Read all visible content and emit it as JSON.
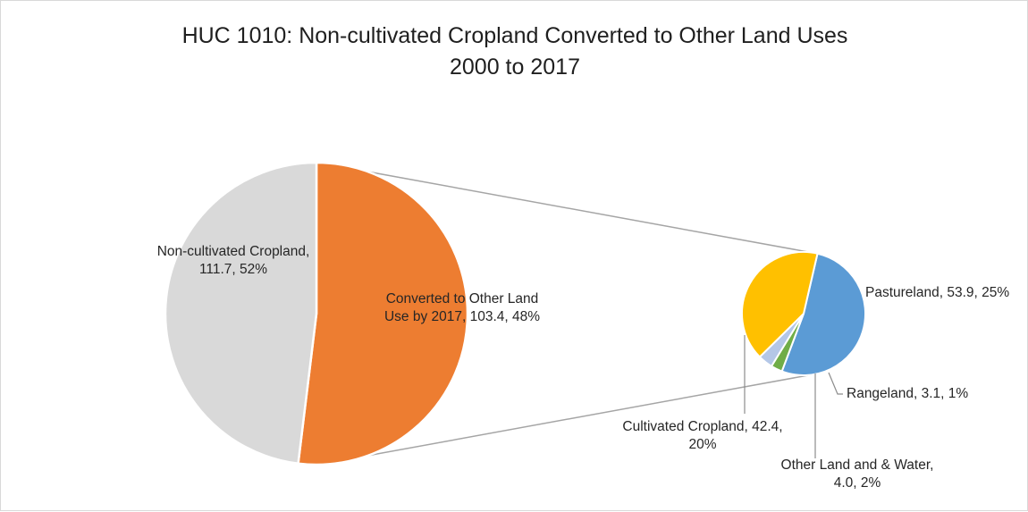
{
  "chart_data": {
    "type": "pie",
    "subtype": "pie-of-pie",
    "title_lines": [
      "HUC 1010: Non-cultivated Cropland Converted to Other Land Uses",
      "2000 to 2017"
    ],
    "main_pie": {
      "slices": [
        {
          "name": "Non-cultivated Cropland",
          "value": 111.7,
          "percent": 52,
          "color": "#ED7D31",
          "label_lines": [
            "Non-cultivated Cropland,",
            "111.7, 52%"
          ]
        },
        {
          "name": "Converted to Other Land Use by 2017",
          "value": 103.4,
          "percent": 48,
          "color": "#D9D9D9",
          "label_lines": [
            "Converted to Other Land",
            "Use by 2017, 103.4, 48%"
          ]
        }
      ]
    },
    "secondary_pie": {
      "slices": [
        {
          "name": "Pastureland",
          "value": 53.9,
          "percent": 25,
          "color": "#5B9BD5",
          "label_lines": [
            "Pastureland, 53.9, 25%"
          ]
        },
        {
          "name": "Rangeland",
          "value": 3.1,
          "percent": 1,
          "color": "#70AD47",
          "label_lines": [
            "Rangeland, 3.1, 1%"
          ]
        },
        {
          "name": "Other Land and & Water",
          "value": 4.0,
          "percent": 2,
          "color": "#B4C7E7",
          "label_lines": [
            "Other Land and & Water,",
            "4.0, 2%"
          ]
        },
        {
          "name": "Cultivated Cropland",
          "value": 42.4,
          "percent": 20,
          "color": "#FFC000",
          "label_lines": [
            "Cultivated Cropland, 42.4,",
            "20%"
          ]
        }
      ]
    },
    "legend": "none",
    "connector_color": "#A5A5A5"
  }
}
